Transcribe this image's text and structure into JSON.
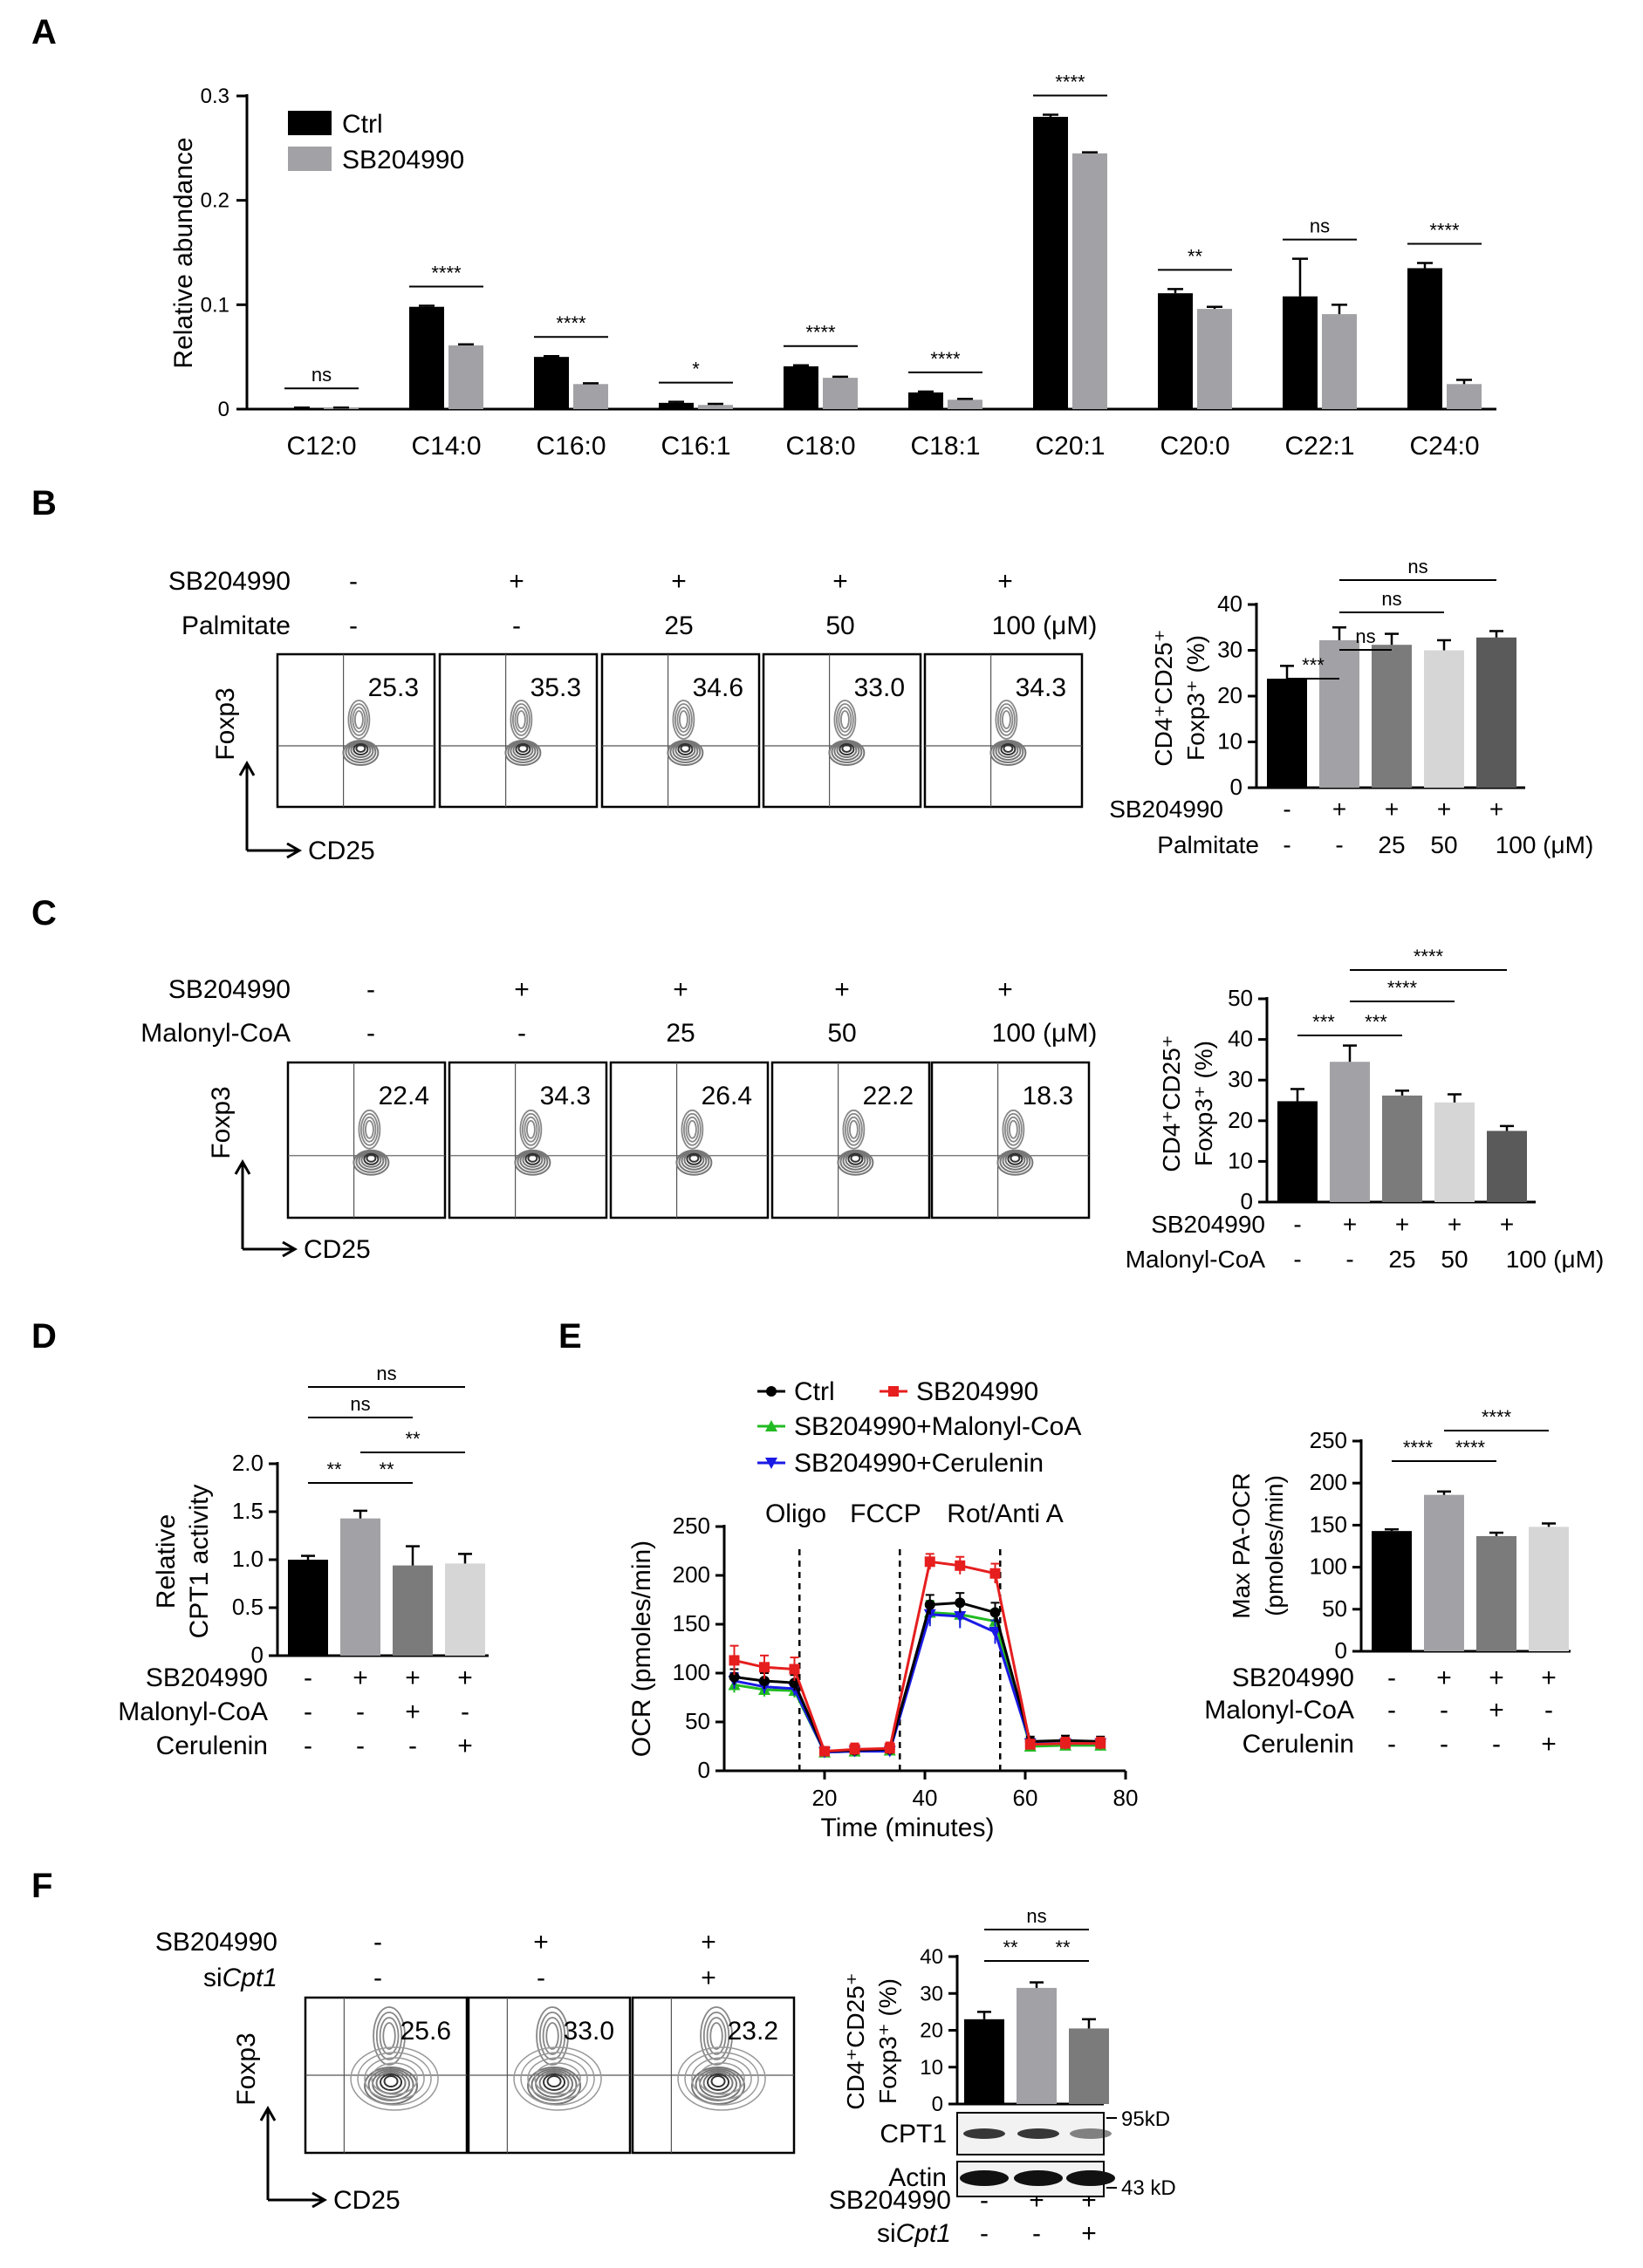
{
  "colors": {
    "black": "#000000",
    "gray1": "#a2a2a6",
    "gray2": "#7b7b7b",
    "gray3": "#d6d6d6",
    "gray4": "#5a5a5a",
    "red": "#e61e1e",
    "green": "#22bb22",
    "blue": "#1a1ae6"
  },
  "panels": {
    "A": {
      "letter": "A"
    },
    "B": {
      "letter": "B",
      "row1_label": "SB204990",
      "row1_signs": [
        "-",
        "+",
        "+",
        "+",
        "+"
      ],
      "row2_label": "Palmitate",
      "row2_values": [
        "-",
        "-",
        "25",
        "50",
        "100 (μM)"
      ],
      "flow_values": [
        "25.3",
        "35.3",
        "34.6",
        "33.0",
        "34.3"
      ],
      "flow_y_axis": "Foxp3",
      "flow_x_axis": "CD25"
    },
    "C": {
      "letter": "C",
      "row1_label": "SB204990",
      "row1_signs": [
        "-",
        "+",
        "+",
        "+",
        "+"
      ],
      "row2_label": "Malonyl-CoA",
      "row2_values": [
        "-",
        "-",
        "25",
        "50",
        "100 (μM)"
      ],
      "flow_values": [
        "22.4",
        "34.3",
        "26.4",
        "22.2",
        "18.3"
      ],
      "flow_y_axis": "Foxp3",
      "flow_x_axis": "CD25"
    },
    "D": {
      "letter": "D"
    },
    "E": {
      "letter": "E"
    },
    "F": {
      "letter": "F",
      "row1_label": "SB204990",
      "row1_signs": [
        "-",
        "+",
        "+"
      ],
      "row2_label": "siCpt1",
      "row2_label_prefix": "si",
      "row2_label_italic": "Cpt1",
      "row2_signs": [
        "-",
        "-",
        "+"
      ],
      "flow_values": [
        "25.6",
        "33.0",
        "23.2"
      ],
      "flow_y_axis": "Foxp3",
      "flow_x_axis": "CD25",
      "blot": {
        "band1": "CPT1",
        "band1_size": "95kD",
        "band2": "Actin",
        "band2_size": "43 kD"
      }
    }
  },
  "chart_data": [
    {
      "id": "A",
      "type": "bar",
      "ylabel": "Relative abundance",
      "ylim": [
        0,
        0.3
      ],
      "yticks": [
        "0",
        "0.1",
        "0.2",
        "0.3"
      ],
      "categories": [
        "C12:0",
        "C14:0",
        "C16:0",
        "C16:1",
        "C18:0",
        "C18:1",
        "C20:1",
        "C20:0",
        "C22:1",
        "C24:0"
      ],
      "series": [
        {
          "name": "Ctrl",
          "values": [
            0.001,
            0.098,
            0.05,
            0.006,
            0.041,
            0.016,
            0.28,
            0.111,
            0.108,
            0.135
          ],
          "errors": [
            0.0005,
            0.001,
            0.0008,
            0.001,
            0.001,
            0.0008,
            0.002,
            0.004,
            0.036,
            0.005
          ]
        },
        {
          "name": "SB204990",
          "values": [
            0.001,
            0.061,
            0.024,
            0.004,
            0.03,
            0.009,
            0.245,
            0.096,
            0.091,
            0.024
          ],
          "errors": [
            0.0005,
            0.001,
            0.0008,
            0.001,
            0.001,
            0.0008,
            0.001,
            0.002,
            0.009,
            0.004
          ]
        }
      ],
      "significance": [
        "ns",
        "****",
        "****",
        "*",
        "****",
        "****",
        "****",
        "**",
        "ns",
        "****"
      ],
      "legend": [
        "Ctrl",
        "SB204990"
      ]
    },
    {
      "id": "B",
      "type": "bar",
      "ylabel_line1": "CD4⁺CD25⁺",
      "ylabel_line2": "Foxp3⁺ (%)",
      "ylim": [
        0,
        40
      ],
      "yticks": [
        "0",
        "10",
        "20",
        "30",
        "40"
      ],
      "values": [
        23.8,
        32.2,
        31.2,
        30.0,
        32.8
      ],
      "errors": [
        2.8,
        2.8,
        2.4,
        2.2,
        1.4
      ],
      "xrow1_label": "SB204990",
      "xrow1": [
        "-",
        "+",
        "+",
        "+",
        "+"
      ],
      "xrow2_label": "Palmitate",
      "xrow2": [
        "-",
        "-",
        "25",
        "50",
        "100 (μM)"
      ],
      "significance": [
        {
          "from": 0,
          "to": 1,
          "label": "***"
        },
        {
          "from": 1,
          "to": 2,
          "label": "ns"
        },
        {
          "from": 1,
          "to": 3,
          "label": "ns"
        },
        {
          "from": 1,
          "to": 4,
          "label": "ns"
        }
      ]
    },
    {
      "id": "C",
      "type": "bar",
      "ylabel_line1": "CD4⁺CD25⁺",
      "ylabel_line2": "Foxp3⁺ (%)",
      "ylim": [
        0,
        50
      ],
      "yticks": [
        "0",
        "10",
        "20",
        "30",
        "40",
        "50"
      ],
      "values": [
        24.8,
        34.5,
        26.2,
        24.5,
        17.5
      ],
      "errors": [
        3.0,
        4.0,
        1.2,
        2.0,
        1.2
      ],
      "xrow1_label": "SB204990",
      "xrow1": [
        "-",
        "+",
        "+",
        "+",
        "+"
      ],
      "xrow2_label": "Malonyl-CoA",
      "xrow2": [
        "-",
        "-",
        "25",
        "50",
        "100 (μM)"
      ],
      "significance": [
        {
          "from": 0,
          "to": 1,
          "label": "***"
        },
        {
          "from": 1,
          "to": 2,
          "label": "***"
        },
        {
          "from": 1,
          "to": 3,
          "label": "****"
        },
        {
          "from": 1,
          "to": 4,
          "label": "****"
        }
      ]
    },
    {
      "id": "D",
      "type": "bar",
      "ylabel_line1": "Relative",
      "ylabel_line2": "CPT1 activity",
      "ylim": [
        0,
        2.0
      ],
      "yticks": [
        "0",
        "0.5",
        "1.0",
        "1.5",
        "2.0"
      ],
      "values": [
        1.0,
        1.43,
        0.94,
        0.96
      ],
      "errors": [
        0.04,
        0.08,
        0.2,
        0.1
      ],
      "xrow1_label": "SB204990",
      "xrow1": [
        "-",
        "+",
        "+",
        "+"
      ],
      "xrow2_label": "Malonyl-CoA",
      "xrow2": [
        "-",
        "-",
        "+",
        "-"
      ],
      "xrow3_label": "Cerulenin",
      "xrow3": [
        "-",
        "-",
        "-",
        "+"
      ],
      "significance": [
        {
          "from": 0,
          "to": 1,
          "label": "**"
        },
        {
          "from": 1,
          "to": 2,
          "label": "**"
        },
        {
          "from": 1,
          "to": 3,
          "label": "**"
        },
        {
          "from": 0,
          "to": 2,
          "label": "ns"
        },
        {
          "from": 0,
          "to": 3,
          "label": "ns"
        }
      ]
    },
    {
      "id": "E-line",
      "type": "line",
      "xlabel": "Time (minutes)",
      "ylabel": "OCR (pmoles/min)",
      "xlim": [
        0,
        80
      ],
      "ylim": [
        0,
        250
      ],
      "xticks": [
        "20",
        "40",
        "60",
        "80"
      ],
      "yticks": [
        "0",
        "50",
        "100",
        "150",
        "200",
        "250"
      ],
      "x": [
        2,
        8,
        14,
        20,
        26,
        33,
        41,
        47,
        54,
        61,
        68,
        75
      ],
      "series": [
        {
          "name": "Ctrl",
          "values": [
            96,
            92,
            90,
            20,
            21,
            22,
            170,
            172,
            162,
            30,
            31,
            30
          ],
          "errors": [
            8,
            8,
            8,
            3,
            3,
            3,
            10,
            10,
            10,
            5,
            5,
            5
          ]
        },
        {
          "name": "SB204990",
          "values": [
            113,
            106,
            104,
            20,
            22,
            23,
            214,
            210,
            202,
            27,
            28,
            28
          ],
          "errors": [
            15,
            12,
            12,
            4,
            6,
            6,
            8,
            9,
            10,
            5,
            6,
            6
          ]
        },
        {
          "name": "SB204990+Malonyl-CoA",
          "values": [
            88,
            83,
            82,
            19,
            20,
            21,
            162,
            160,
            153,
            25,
            26,
            26
          ],
          "errors": [
            8,
            7,
            7,
            3,
            3,
            3,
            12,
            12,
            12,
            5,
            5,
            5
          ]
        },
        {
          "name": "SB204990+Cerulenin",
          "values": [
            92,
            86,
            84,
            19,
            20,
            20,
            160,
            158,
            142,
            28,
            28,
            28
          ],
          "errors": [
            8,
            7,
            7,
            3,
            3,
            3,
            12,
            12,
            12,
            5,
            5,
            5
          ]
        }
      ],
      "injections": [
        {
          "label": "Oligo",
          "x": 15
        },
        {
          "label": "FCCP",
          "x": 35
        },
        {
          "label": "Rot/Anti A",
          "x": 55
        }
      ],
      "legend": [
        "Ctrl",
        "SB204990",
        "SB204990+Malonyl-CoA",
        "SB204990+Cerulenin"
      ]
    },
    {
      "id": "E-bar",
      "type": "bar",
      "ylabel_line1": "Max PA-OCR",
      "ylabel_line2": "(pmoles/min)",
      "ylim": [
        0,
        250
      ],
      "yticks": [
        "0",
        "50",
        "100",
        "150",
        "200",
        "250"
      ],
      "values": [
        143,
        186,
        137,
        148
      ],
      "errors": [
        2,
        4,
        4,
        4
      ],
      "xrow1_label": "SB204990",
      "xrow1": [
        "-",
        "+",
        "+",
        "+"
      ],
      "xrow2_label": "Malonyl-CoA",
      "xrow2": [
        "-",
        "-",
        "+",
        "-"
      ],
      "xrow3_label": "Cerulenin",
      "xrow3": [
        "-",
        "-",
        "-",
        "+"
      ],
      "significance": [
        {
          "from": 0,
          "to": 1,
          "label": "****"
        },
        {
          "from": 1,
          "to": 2,
          "label": "****"
        },
        {
          "from": 1,
          "to": 3,
          "label": "****"
        }
      ]
    },
    {
      "id": "F",
      "type": "bar",
      "ylabel_line1": "CD4⁺CD25⁺",
      "ylabel_line2": "Foxp3⁺ (%)",
      "ylim": [
        0,
        40
      ],
      "yticks": [
        "0",
        "10",
        "20",
        "30",
        "40"
      ],
      "values": [
        23.0,
        31.5,
        20.5
      ],
      "errors": [
        2.0,
        1.5,
        2.5
      ],
      "xrow1_label": "SB204990",
      "xrow1": [
        "-",
        "+",
        "+"
      ],
      "xrow2_label": "siCpt1",
      "xrow2": [
        "-",
        "-",
        "+"
      ],
      "significance": [
        {
          "from": 0,
          "to": 1,
          "label": "**"
        },
        {
          "from": 1,
          "to": 2,
          "label": "**"
        },
        {
          "from": 0,
          "to": 2,
          "label": "ns"
        }
      ]
    }
  ]
}
